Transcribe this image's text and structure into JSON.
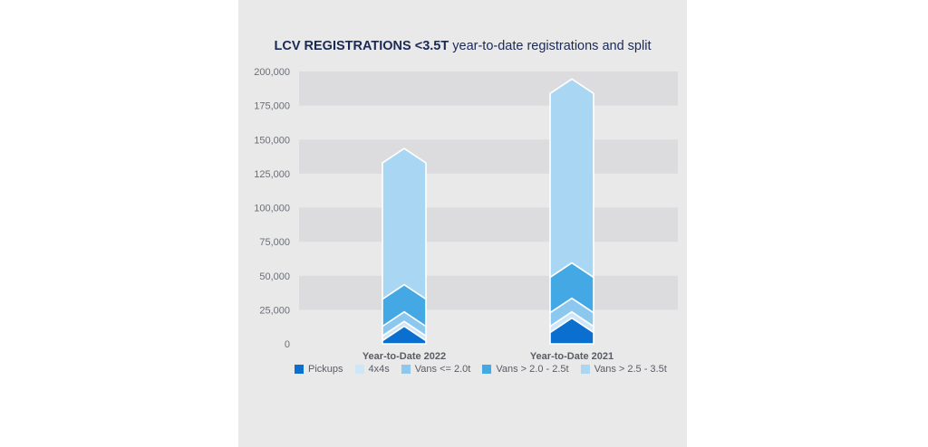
{
  "title": {
    "bold": "LCV REGISTRATIONS <3.5T",
    "rest": "year-to-date registrations and split"
  },
  "chart_data": {
    "type": "bar",
    "stacked": true,
    "title": "LCV REGISTRATIONS <3.5T year-to-date registrations and split",
    "categories": [
      "Year-to-Date 2022",
      "Year-to-Date 2021"
    ],
    "ylim": [
      0,
      200000
    ],
    "yticks": [
      "200,000",
      "175,000",
      "150,000",
      "125,000",
      "100,000",
      "75,000",
      "50,000",
      "25,000",
      "0"
    ],
    "ytick_values": [
      200000,
      175000,
      150000,
      125000,
      100000,
      75000,
      50000,
      25000,
      0
    ],
    "grid": "horizontal bands",
    "legend_position": "bottom",
    "series": [
      {
        "name": "Pickups",
        "color": "#0a6fcf",
        "values": [
          13000,
          19000
        ]
      },
      {
        "name": "4x4s",
        "color": "#cde7f8",
        "values": [
          3500,
          4500
        ]
      },
      {
        "name": "Vans <= 2.0t",
        "color": "#8cc8ee",
        "values": [
          7000,
          10000
        ]
      },
      {
        "name": "Vans > 2.0 - 2.5t",
        "color": "#43a8e3",
        "values": [
          20000,
          26000
        ]
      },
      {
        "name": "Vans > 2.5 - 3.5t",
        "color": "#a9d6f2",
        "values": [
          100000,
          135000
        ]
      }
    ]
  }
}
